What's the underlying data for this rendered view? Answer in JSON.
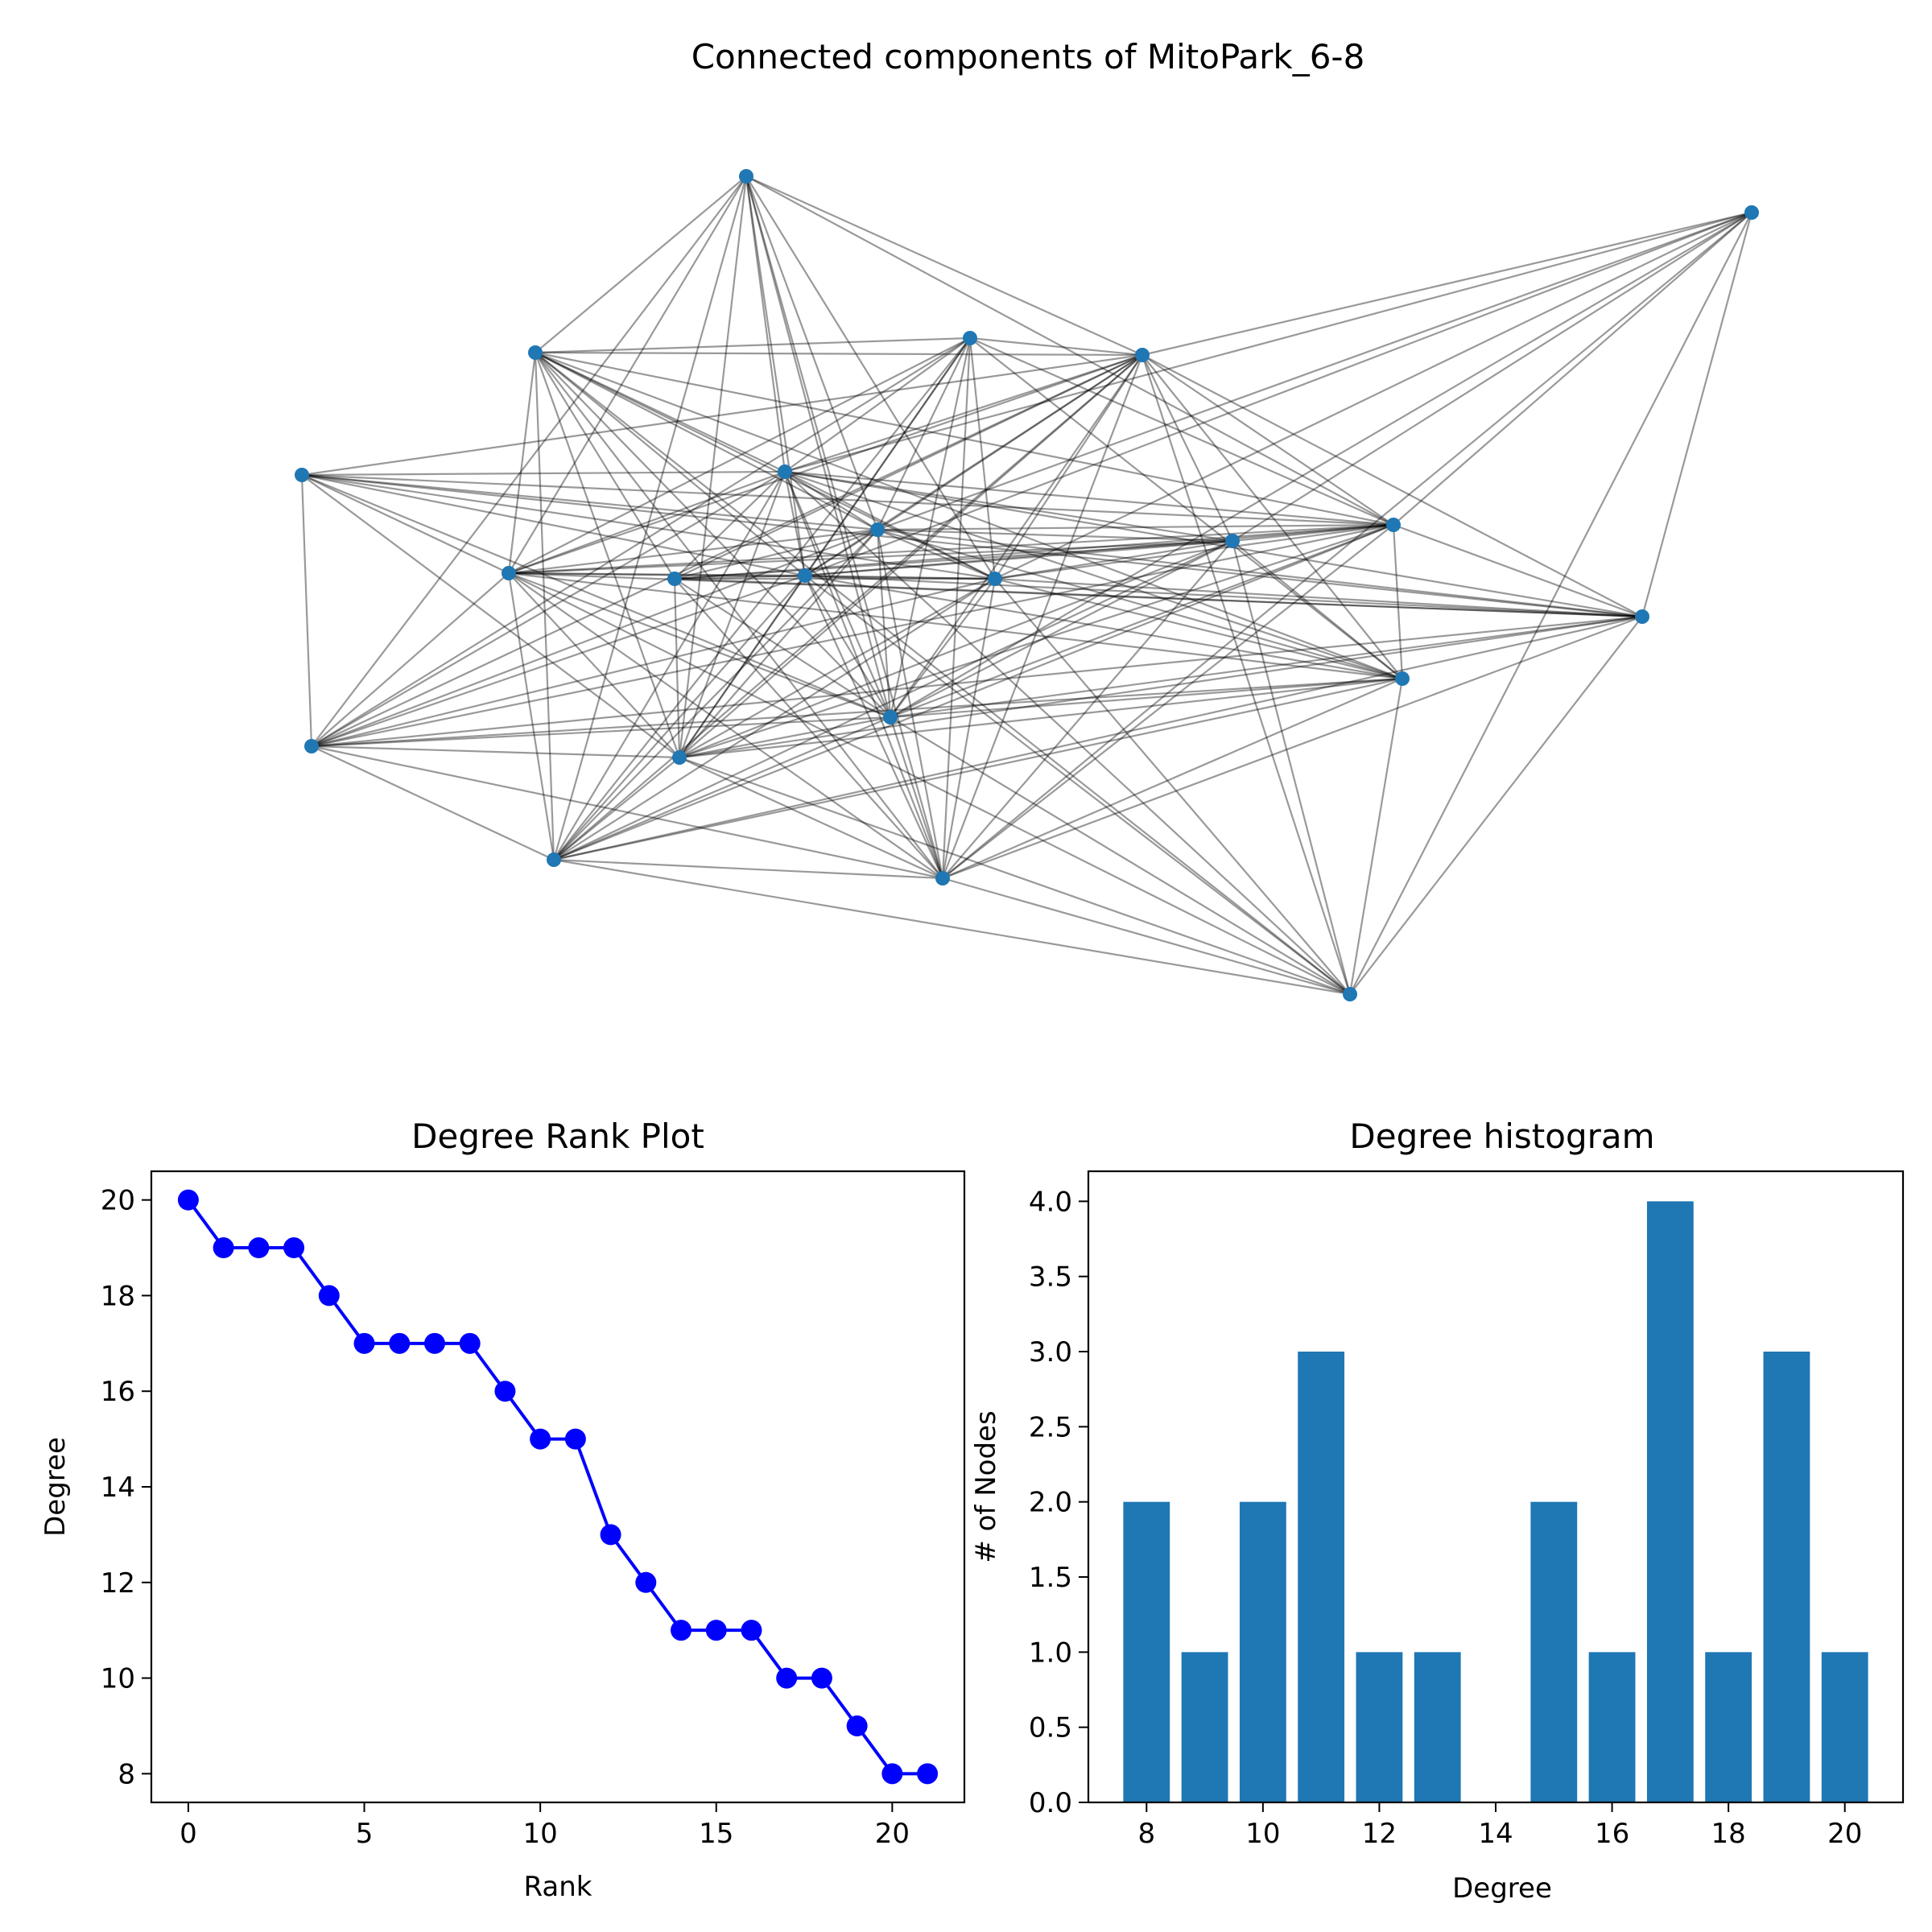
{
  "chart_data": [
    {
      "type": "network",
      "title": "Connected components of MitoPark_6-8",
      "node_count": 22,
      "node_color": "#1f77b4",
      "edge_color": "#000000"
    },
    {
      "type": "line",
      "title": "Degree Rank Plot",
      "xlabel": "Rank",
      "ylabel": "Degree",
      "x": [
        0,
        1,
        2,
        3,
        4,
        5,
        6,
        7,
        8,
        9,
        10,
        11,
        12,
        13,
        14,
        15,
        16,
        17,
        18,
        19,
        20,
        21
      ],
      "y": [
        20,
        19,
        19,
        19,
        18,
        17,
        17,
        17,
        17,
        16,
        15,
        15,
        13,
        12,
        11,
        11,
        11,
        10,
        10,
        9,
        8,
        8
      ],
      "xlim": [
        -1.05,
        22.05
      ],
      "ylim": [
        7.4,
        20.6
      ],
      "xticks": [
        0,
        5,
        10,
        15,
        20
      ],
      "yticks": [
        8,
        10,
        12,
        14,
        16,
        18,
        20
      ],
      "color": "#0000ff"
    },
    {
      "type": "bar",
      "title": "Degree histogram",
      "xlabel": "Degree",
      "ylabel": "# of Nodes",
      "categories": [
        8,
        9,
        10,
        11,
        12,
        13,
        15,
        16,
        17,
        18,
        19,
        20
      ],
      "values": [
        2,
        1,
        2,
        3,
        1,
        1,
        2,
        1,
        4,
        1,
        3,
        1
      ],
      "xlim": [
        7.0,
        21.0
      ],
      "ylim": [
        0,
        4.2
      ],
      "xticks": [
        8,
        10,
        12,
        14,
        16,
        18,
        20
      ],
      "yticks": [
        "0.0",
        "0.5",
        "1.0",
        "1.5",
        "2.0",
        "2.5",
        "3.0",
        "3.5",
        "4.0"
      ],
      "color": "#1f77b4"
    }
  ]
}
